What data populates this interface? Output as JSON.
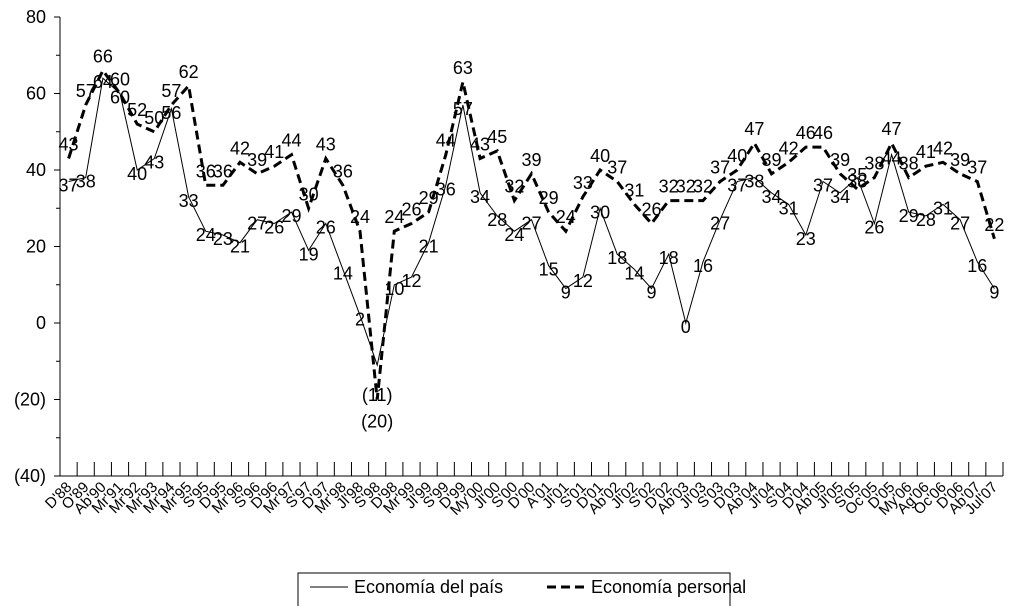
{
  "chart_data": {
    "type": "line",
    "title": "",
    "xlabel": "",
    "ylabel": "",
    "ylim": [
      -40,
      80
    ],
    "y_ticks": [
      80,
      60,
      40,
      20,
      0,
      -20,
      -40
    ],
    "y_tick_labels": [
      "80",
      "60",
      "40",
      "20",
      "0",
      "(20)",
      "(40)"
    ],
    "categories": [
      "D'88",
      "O'89",
      "Ab'90",
      "Mr'91",
      "Mr'92",
      "Mr'93",
      "Mr'94",
      "Mr'95",
      "S'95",
      "D'95",
      "Mr'96",
      "S'96",
      "D'96",
      "Mr'97",
      "S'97",
      "D'97",
      "Mr'98",
      "Jl'98",
      "S'98",
      "D'98",
      "Mr'99",
      "Jl'99",
      "S'99",
      "D'99",
      "My'00",
      "Jl'00",
      "S'00",
      "D'00",
      "A'01",
      "Jl'01",
      "S'01",
      "D'01",
      "Ab'02",
      "Jl'02",
      "S'02",
      "D'02",
      "Ab'03",
      "Jl'03",
      "S'03",
      "D'03",
      "Ab'04",
      "Jl'04",
      "S'04",
      "D'04",
      "Ab'05",
      "Jl'05",
      "S'05",
      "Oc'05",
      "D'05",
      "My'06",
      "Ag'06",
      "Oc'06",
      "D'06",
      "Ab'07",
      "Jul'07"
    ],
    "series": [
      {
        "name": "Economía del país",
        "style": "solid",
        "color": "#000000",
        "values": [
          37,
          38,
          64,
          60,
          40,
          43,
          56,
          33,
          24,
          23,
          21,
          27,
          26,
          29,
          19,
          26,
          14,
          2,
          -11,
          10,
          12,
          21,
          36,
          57,
          34,
          28,
          24,
          27,
          15,
          9,
          12,
          30,
          18,
          14,
          9,
          18,
          0,
          16,
          27,
          37,
          38,
          34,
          31,
          23,
          37,
          34,
          38,
          26,
          44,
          29,
          28,
          31,
          27,
          16,
          9
        ],
        "labels": [
          "37",
          "38",
          "64",
          "60",
          "40",
          "43",
          "56",
          "33",
          "24",
          "23",
          "21",
          "27",
          "26",
          "29",
          "19",
          "26",
          "14",
          "2",
          "(11)",
          "10",
          "12",
          "21",
          "36",
          "57",
          "34",
          "28",
          "24",
          "27",
          "15",
          "9",
          "12",
          "30",
          "18",
          "14",
          "9",
          "18",
          "0",
          "16",
          "27",
          "37",
          "38",
          "34",
          "31",
          "23",
          "37",
          "34",
          "38",
          "26",
          "44",
          "29",
          "28",
          "31",
          "27",
          "16",
          "9"
        ]
      },
      {
        "name": "Economía personal",
        "style": "dashed",
        "color": "#000000",
        "values": [
          43,
          57,
          66,
          60,
          52,
          50,
          57,
          62,
          36,
          36,
          42,
          39,
          41,
          44,
          30,
          43,
          36,
          24,
          -20,
          24,
          26,
          29,
          44,
          63,
          43,
          45,
          32,
          39,
          29,
          24,
          33,
          40,
          37,
          31,
          26,
          32,
          32,
          32,
          37,
          40,
          47,
          39,
          42,
          46,
          46,
          39,
          35,
          38,
          47,
          38,
          41,
          42,
          39,
          37,
          22
        ],
        "labels": [
          "43",
          "57",
          "66",
          "60",
          "52",
          "50",
          "57",
          "62",
          "36",
          "36",
          "42",
          "39",
          "41",
          "44",
          "30",
          "43",
          "36",
          "24",
          "(20)",
          "24",
          "26",
          "29",
          "44",
          "63",
          "43",
          "45",
          "32",
          "39",
          "29",
          "24",
          "33",
          "40",
          "37",
          "31",
          "26",
          "32",
          "32",
          "32",
          "37",
          "40",
          "47",
          "39",
          "42",
          "46",
          "46",
          "39",
          "35",
          "38",
          "47",
          "38",
          "41",
          "42",
          "39",
          "37",
          "22"
        ]
      }
    ],
    "legend": {
      "placement": "bottom-center"
    },
    "grid": false
  }
}
